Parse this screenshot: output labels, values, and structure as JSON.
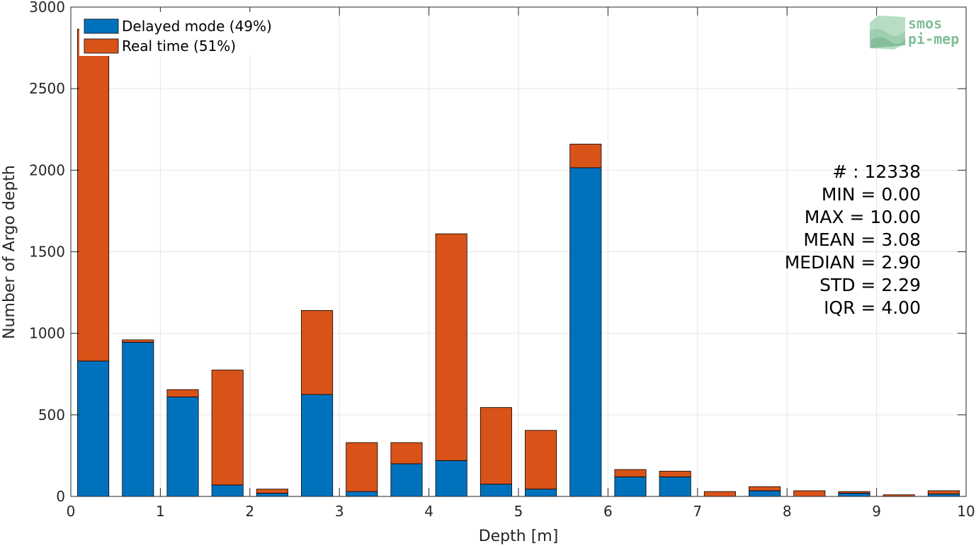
{
  "chart_data": {
    "type": "bar",
    "stacked": true,
    "xlabel": "Depth [m]",
    "ylabel": "Number of Argo depth",
    "xlim": [
      0,
      10
    ],
    "ylim": [
      0,
      3000
    ],
    "x_ticks": [
      "0",
      "1",
      "2",
      "3",
      "4",
      "5",
      "6",
      "7",
      "8",
      "9",
      "10"
    ],
    "y_ticks": [
      "0",
      "500",
      "1000",
      "1500",
      "2000",
      "2500",
      "3000"
    ],
    "grid": true,
    "legend_position": "top-left",
    "x": [
      0.25,
      0.75,
      1.25,
      1.75,
      2.25,
      2.75,
      3.25,
      3.75,
      4.25,
      4.75,
      5.25,
      5.75,
      6.25,
      6.75,
      7.25,
      7.75,
      8.25,
      8.75,
      9.25,
      9.75
    ],
    "bar_width": 0.35,
    "series": [
      {
        "name": "Delayed mode (49%)",
        "color": "#0072BD",
        "values": [
          830,
          945,
          610,
          70,
          20,
          625,
          30,
          200,
          220,
          75,
          45,
          2015,
          120,
          120,
          0,
          35,
          0,
          20,
          0,
          15
        ]
      },
      {
        "name": "Real time (51%)",
        "color": "#D95319",
        "values": [
          2035,
          15,
          45,
          705,
          25,
          515,
          300,
          130,
          1390,
          470,
          360,
          145,
          45,
          35,
          30,
          25,
          35,
          10,
          10,
          20
        ]
      }
    ],
    "stats": [
      "# : 12338",
      "MIN = 0.00",
      "MAX =  10.00",
      "MEAN = 3.08",
      "MEDIAN = 2.90",
      "STD = 2.29",
      "IQR = 4.00"
    ]
  },
  "logo": {
    "line1": "smos",
    "line2": "pi-mep",
    "color": "#7fbf95"
  }
}
